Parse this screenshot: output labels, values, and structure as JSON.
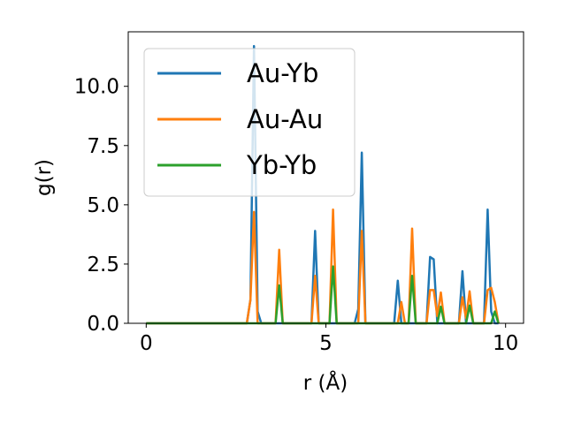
{
  "chart_data": {
    "type": "line",
    "title": "",
    "xlabel": "r (Å)",
    "ylabel": "g(r)",
    "xlim": [
      -0.5,
      10.5
    ],
    "ylim": [
      0,
      12.3
    ],
    "xticks": [
      0,
      5,
      10
    ],
    "xtick_labels": [
      "0",
      "5",
      "10"
    ],
    "yticks": [
      0,
      2.5,
      5,
      7.5,
      10
    ],
    "ytick_labels": [
      "0.0",
      "2.5",
      "5.0",
      "7.5",
      "10.0"
    ],
    "grid": false,
    "legend_position": "top-left",
    "series": [
      {
        "name": "Au-Yb",
        "color": "#1f77b4",
        "x": [
          0,
          2.8,
          2.9,
          3.0,
          3.1,
          3.2,
          4.6,
          4.7,
          4.8,
          5.8,
          5.9,
          6.0,
          6.1,
          6.9,
          7.0,
          7.1,
          7.8,
          7.9,
          8.0,
          8.1,
          8.7,
          8.8,
          8.9,
          9.4,
          9.5,
          9.6,
          9.7,
          9.8
        ],
        "y": [
          0,
          0,
          1.0,
          11.7,
          0.5,
          0,
          0,
          3.9,
          0,
          0,
          0.6,
          7.2,
          0,
          0,
          1.8,
          0,
          0,
          2.8,
          2.7,
          0,
          0,
          2.2,
          0,
          0,
          4.8,
          0.5,
          0,
          0
        ]
      },
      {
        "name": "Au-Au",
        "color": "#ff7f0e",
        "x": [
          0,
          2.8,
          2.9,
          3.0,
          3.1,
          3.6,
          3.7,
          3.8,
          4.6,
          4.7,
          4.8,
          5.1,
          5.2,
          5.3,
          5.9,
          6.0,
          6.1,
          7.0,
          7.1,
          7.2,
          7.3,
          7.4,
          7.5,
          7.8,
          7.9,
          8.0,
          8.1,
          8.2,
          8.3,
          8.7,
          8.8,
          8.9,
          9.0,
          9.1,
          9.4,
          9.5,
          9.6,
          9.7,
          9.8
        ],
        "y": [
          0,
          0,
          1.0,
          4.7,
          0,
          0,
          3.1,
          0,
          0,
          2.0,
          0,
          0,
          4.8,
          0,
          0,
          3.9,
          0,
          0,
          0.9,
          0,
          0,
          4.0,
          0,
          0,
          1.4,
          1.4,
          0.3,
          1.3,
          0,
          0,
          1.1,
          0.2,
          1.35,
          0,
          0,
          1.4,
          1.5,
          0.9,
          0
        ]
      },
      {
        "name": "Yb-Yb",
        "color": "#2ca02c",
        "x": [
          0,
          3.6,
          3.7,
          3.8,
          5.1,
          5.2,
          5.3,
          7.3,
          7.4,
          7.5,
          8.1,
          8.2,
          8.3,
          8.9,
          9.0,
          9.1,
          9.6,
          9.7,
          9.8
        ],
        "y": [
          0,
          0,
          1.6,
          0,
          0,
          2.4,
          0,
          0,
          2.0,
          0,
          0,
          0.7,
          0,
          0,
          0.75,
          0,
          0,
          0.5,
          0
        ]
      }
    ]
  }
}
